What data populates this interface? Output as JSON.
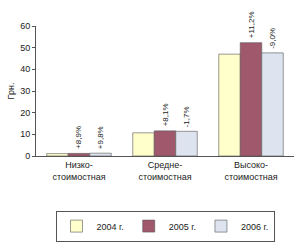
{
  "chart_data": {
    "type": "bar",
    "y_label": "Грн.",
    "categories": [
      "Низко-стоимостная",
      "Средне-стоимостная",
      "Высоко-стоимостная"
    ],
    "series": [
      {
        "name": "2004 г.",
        "color": "#ffffcc",
        "values": [
          1.1,
          10.7,
          47.0
        ]
      },
      {
        "name": "2005 г.",
        "color": "#a0586c",
        "values": [
          1.2,
          11.6,
          52.3
        ]
      },
      {
        "name": "2006 г.",
        "color": "#dde3ef",
        "values": [
          1.3,
          11.4,
          47.6
        ]
      }
    ],
    "annotations": [
      {
        "text": "+8,9%",
        "category": "Низко-стоимостная",
        "series": "2005 г."
      },
      {
        "text": "+9,8%",
        "category": "Низко-стоимостная",
        "series": "2006 г."
      },
      {
        "text": "+8,1%",
        "category": "Средне-стоимостная",
        "series": "2005 г."
      },
      {
        "text": "-1,7%",
        "category": "Средне-стоимостная",
        "series": "2006 г."
      },
      {
        "text": "+11,2%",
        "category": "Высоко-стоимостная",
        "series": "2005 г."
      },
      {
        "text": "-9,0%",
        "category": "Высоко-стоимостная",
        "series": "2006 г."
      }
    ],
    "ylim": [
      0,
      60
    ],
    "yticks": [
      0,
      10,
      20,
      30,
      40,
      50,
      60
    ],
    "grid": false,
    "legend": "bottom"
  }
}
